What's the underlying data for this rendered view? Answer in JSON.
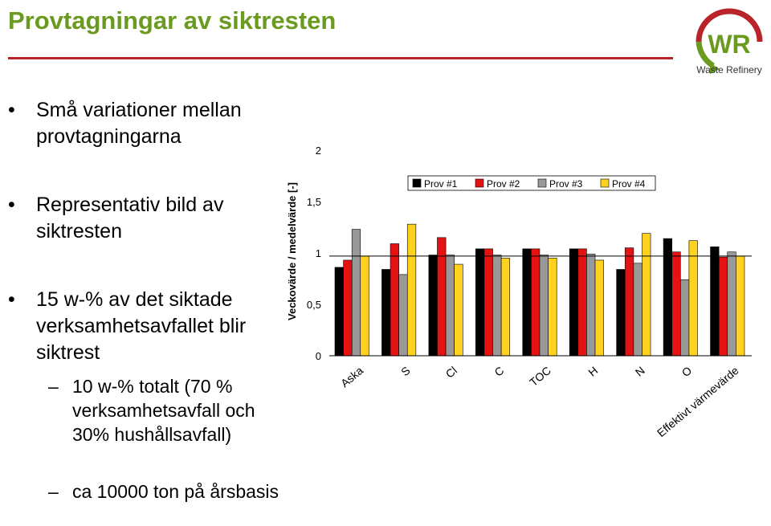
{
  "slide": {
    "title": "Provtagningar av siktresten",
    "bullets": [
      "Små variationer mellan provtagningarna",
      "Representativ bild av siktresten",
      "15 w-% av det siktade verksamhetsavfallet blir siktrest"
    ],
    "subbullets": [
      "10 w-% totalt (70 % verksamhetsavfall och 30% hushållsavfall)",
      "ca 10000 ton på årsbasis"
    ],
    "logo_text": "Waste Refinery",
    "logo_letters": "WR"
  },
  "colors": {
    "title": "#6a9a1f",
    "rule": "#b8242a",
    "series": [
      "#000000",
      "#e41212",
      "#999999",
      "#ffd21f"
    ]
  },
  "chart_data": {
    "type": "bar",
    "ylabel": "Veckovärde / medelvärde [-]",
    "ylim": [
      0,
      2
    ],
    "yticks": [
      0,
      0.5,
      1,
      1.5,
      2
    ],
    "ytick_labels": [
      "0",
      "0,5",
      "1",
      "1,5",
      "2"
    ],
    "reference_line": 0.97,
    "legend_placement": "top-right",
    "categories": [
      "Aska",
      "S",
      "Cl",
      "C",
      "TOC",
      "H",
      "N",
      "O",
      "Effektivt värmevärde"
    ],
    "series": [
      {
        "name": "Prov #1",
        "values": [
          0.86,
          0.84,
          0.98,
          1.04,
          1.04,
          1.04,
          0.84,
          1.14,
          1.06
        ]
      },
      {
        "name": "Prov #2",
        "values": [
          0.93,
          1.09,
          1.15,
          1.04,
          1.04,
          1.04,
          1.05,
          1.01,
          0.96
        ]
      },
      {
        "name": "Prov #3",
        "values": [
          1.23,
          0.79,
          0.98,
          0.98,
          0.98,
          0.99,
          0.9,
          0.74,
          1.01
        ]
      },
      {
        "name": "Prov #4",
        "values": [
          0.97,
          1.28,
          0.89,
          0.95,
          0.95,
          0.93,
          1.19,
          1.12,
          0.97
        ]
      }
    ]
  }
}
